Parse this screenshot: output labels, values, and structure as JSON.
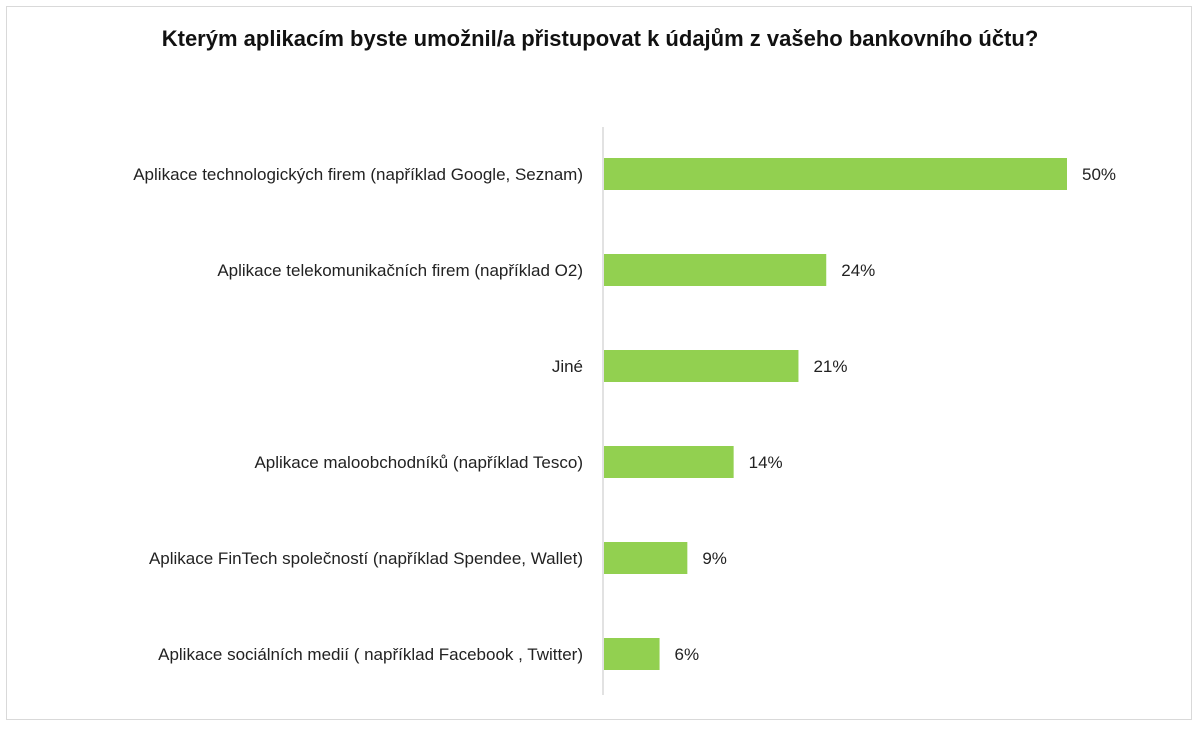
{
  "chart_data": {
    "type": "bar",
    "orientation": "horizontal",
    "title": "Kterým aplikacím byste umožnil/a přistupovat k údajům z vašeho bankovního účtu?",
    "categories": [
      "Aplikace technologických firem (například Google, Seznam)",
      "Aplikace telekomunikačních firem (například O2)",
      "Jiné",
      "Aplikace maloobchodníků (například Tesco)",
      "Aplikace FinTech společností (například Spendee, Wallet)",
      "Aplikace sociálních medií ( například Facebook , Twitter)"
    ],
    "values": [
      50,
      24,
      21,
      14,
      9,
      6
    ],
    "value_labels": [
      "50%",
      "24%",
      "21%",
      "14%",
      "9%",
      "6%"
    ],
    "xlim": [
      0,
      50
    ],
    "grid": false,
    "legend": "none",
    "bar_color": "#92d050",
    "axis_color": "#d9d9d9"
  }
}
